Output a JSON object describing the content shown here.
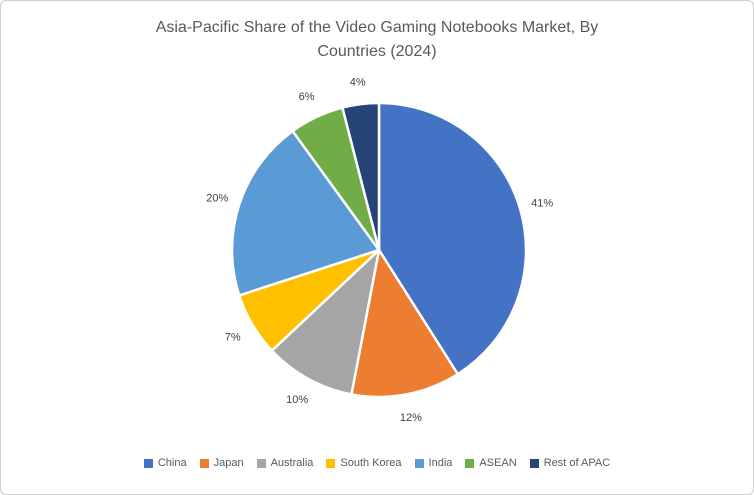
{
  "frame": {
    "background": "#ffffff",
    "border_color": "#cfcfcf"
  },
  "chart_data": {
    "type": "pie",
    "title": "Asia-Pacific Share of the Video Gaming Notebooks Market, By Countries (2024)",
    "title_lines": [
      "Asia-Pacific Share of the Video Gaming Notebooks Market, By",
      "Countries (2024)"
    ],
    "categories": [
      "China",
      "Japan",
      "Australia",
      "South Korea",
      "India",
      "ASEAN",
      "Rest of APAC"
    ],
    "values": [
      41,
      12,
      10,
      7,
      20,
      6,
      4
    ],
    "data_labels": [
      "41%",
      "12%",
      "10%",
      "7%",
      "20%",
      "6%",
      "4%"
    ],
    "colors": [
      "#4472C4",
      "#ED7D31",
      "#A5A5A5",
      "#FFC000",
      "#5B9BD5",
      "#70AD47",
      "#264478"
    ],
    "start_angle_deg": 0,
    "direction": "clockwise",
    "slice_separator_color": "#FFFFFF",
    "legend_position": "bottom",
    "title_color": "#595959",
    "data_label_color": "#404040",
    "legend_text_color": "#595959"
  }
}
